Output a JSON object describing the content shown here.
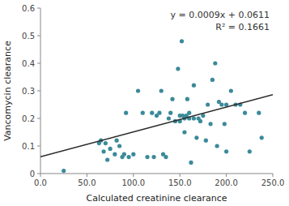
{
  "chart_data": {
    "type": "scatter",
    "xlabel": "Calculated creatinine clearance",
    "ylabel": "Vancomycin clearance",
    "annotations": [
      "y = 0.0009x + 0.0611",
      "R² = 0.1661"
    ],
    "xlim": [
      0.0,
      250.0
    ],
    "ylim": [
      0,
      0.6
    ],
    "xticks": [
      {
        "value": 0.0,
        "label": "0.0"
      },
      {
        "value": 50.0,
        "label": "50.0"
      },
      {
        "value": 100.0,
        "label": "100.0"
      },
      {
        "value": 150.0,
        "label": "150.0"
      },
      {
        "value": 200.0,
        "label": "200.0"
      },
      {
        "value": 250.0,
        "label": "250.0"
      }
    ],
    "yticks": [
      0,
      0.1,
      0.2,
      0.3,
      0.4,
      0.5,
      0.6
    ],
    "grid": false,
    "series": [
      {
        "type": "scatter",
        "color": "#3b8a9a",
        "x": [
          25,
          63,
          65,
          68,
          70,
          72,
          75,
          80,
          82,
          85,
          88,
          90,
          92,
          95,
          100,
          105,
          110,
          115,
          120,
          122,
          125,
          128,
          130,
          132,
          135,
          138,
          140,
          142,
          145,
          148,
          150,
          150,
          152,
          153,
          155,
          155,
          157,
          158,
          160,
          160,
          162,
          165,
          165,
          168,
          170,
          172,
          175,
          178,
          180,
          183,
          185,
          188,
          190,
          192,
          195,
          198,
          200,
          200,
          205,
          210,
          215,
          220,
          225,
          235,
          238
        ],
        "values": [
          0.01,
          0.11,
          0.12,
          0.08,
          0.11,
          0.05,
          0.09,
          0.07,
          0.12,
          0.1,
          0.06,
          0.07,
          0.22,
          0.06,
          0.07,
          0.3,
          0.22,
          0.06,
          0.22,
          0.06,
          0.21,
          0.22,
          0.3,
          0.07,
          0.06,
          0.2,
          0.22,
          0.27,
          0.19,
          0.38,
          0.21,
          0.19,
          0.48,
          0.21,
          0.2,
          0.15,
          0.21,
          0.27,
          0.2,
          0.22,
          0.04,
          0.32,
          0.2,
          0.13,
          0.2,
          0.19,
          0.21,
          0.12,
          0.25,
          0.18,
          0.34,
          0.4,
          0.1,
          0.26,
          0.25,
          0.18,
          0.25,
          0.08,
          0.3,
          0.25,
          0.25,
          0.22,
          0.08,
          0.22,
          0.13
        ]
      },
      {
        "type": "line",
        "color": "#2a2a2a",
        "x": [
          0,
          250
        ],
        "values": [
          0.0611,
          0.2861
        ]
      }
    ]
  }
}
